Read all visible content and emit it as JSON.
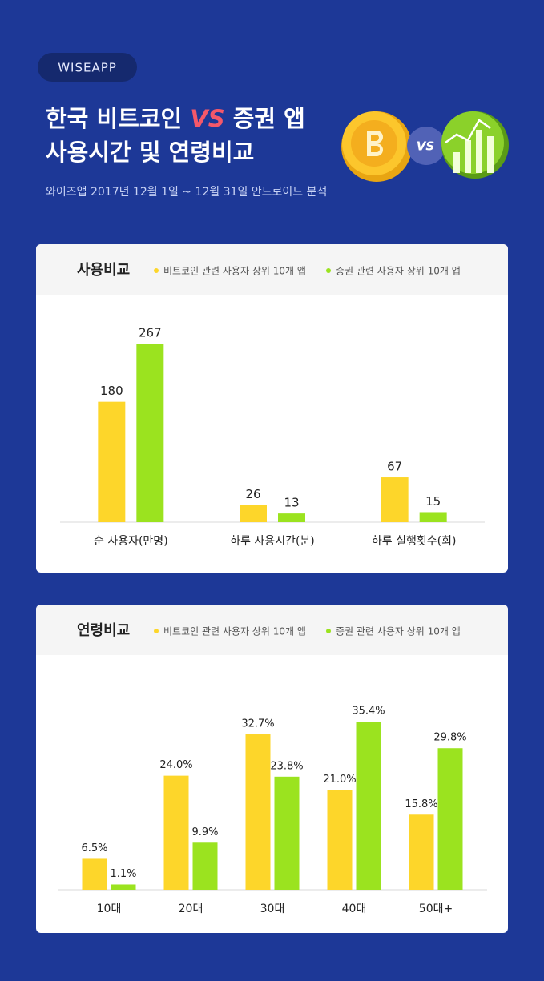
{
  "header": {
    "badge": "WISEAPP",
    "title_a": "한국 비트코인 ",
    "title_vs": "VS",
    "title_b": " 증권 앱",
    "title_line2": "사용시간 및 연령비교",
    "subtitle": "와이즈앱 2017년 12월 1일 ~ 12월 31일 안드로이드 분석",
    "icon_vs": "VS"
  },
  "chart_data": [
    {
      "type": "bar",
      "title": "사용비교",
      "categories": [
        "순 사용자(만명)",
        "하루 사용시간(분)",
        "하루 실행횟수(회)"
      ],
      "series": [
        {
          "name": "비트코인 관련 사용자 상위 10개 앱",
          "color": "#fdd62a",
          "values": [
            180,
            26,
            67
          ]
        },
        {
          "name": "증권 관련 사용자 상위 10개 앱",
          "color": "#9be31f",
          "values": [
            267,
            13,
            15
          ]
        }
      ]
    },
    {
      "type": "bar",
      "title": "연령비교",
      "categories": [
        "10대",
        "20대",
        "30대",
        "40대",
        "50대+"
      ],
      "series": [
        {
          "name": "비트코인 관련 사용자 상위 10개 앱",
          "color": "#fdd62a",
          "values": [
            6.5,
            24,
            32.7,
            21,
            15.8
          ],
          "value_labels": [
            "6.5%",
            "24.0%",
            "32.7%",
            "21.0%",
            "15.8%"
          ]
        },
        {
          "name": "증권 관련 사용자 상위 10개 앱",
          "color": "#9be31f",
          "values": [
            1.1,
            9.9,
            23.8,
            35.4,
            29.8
          ],
          "value_labels": [
            "1.1%",
            "9.9%",
            "23.8%",
            "35.4%",
            "29.8%"
          ]
        }
      ]
    }
  ]
}
